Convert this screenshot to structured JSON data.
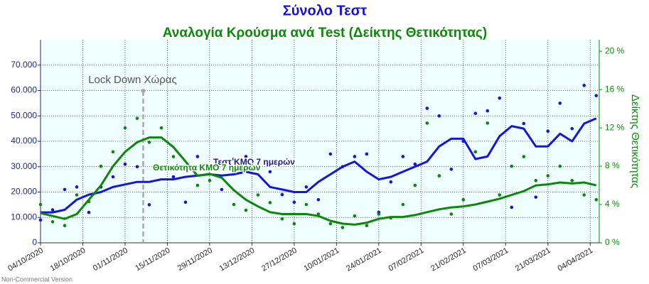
{
  "chart_data": {
    "type": "line",
    "title": "Σύνολο Τεστ",
    "subtitle": "Αναλογία Κρούσμα ανά Test (Δείκτης Θετικότητας)",
    "y2label": "Δείκτης Θετικότητας",
    "watermark": "Non-Commercial Version",
    "xlim": [
      "04/10/2020",
      "07/04/2021"
    ],
    "xticks": [
      "04/10/2020",
      "18/10/2020",
      "01/11/2020",
      "15/11/2020",
      "29/11/2020",
      "13/12/2020",
      "27/12/2020",
      "10/01/2021",
      "24/01/2021",
      "07/02/2021",
      "21/02/2021",
      "07/03/2021",
      "21/03/2021",
      "04/04/2021"
    ],
    "ylim": [
      0,
      80000
    ],
    "yticks": [
      0,
      {
        "value": 10000,
        "label": "10.000"
      },
      {
        "value": 20000,
        "label": "20.000"
      },
      {
        "value": 30000,
        "label": "30.000"
      },
      {
        "value": 40000,
        "label": "40.000"
      },
      {
        "value": 50000,
        "label": "50.000"
      },
      {
        "value": 60000,
        "label": "60.000"
      },
      {
        "value": 70000,
        "label": "70.000"
      }
    ],
    "y2lim": [
      0,
      21.2
    ],
    "y2ticks": [
      {
        "value": 0,
        "label": "0 %"
      },
      {
        "value": 4,
        "label": "4 %"
      },
      {
        "value": 8,
        "label": "8 %"
      },
      {
        "value": 12,
        "label": "12 %"
      },
      {
        "value": 16,
        "label": "16 %"
      },
      {
        "value": 20,
        "label": "20 %"
      }
    ],
    "grid": true,
    "annotations": [
      {
        "text": "Lock Down Χώρας",
        "x": "07/11/2020"
      }
    ],
    "x": [
      "04/10/2020",
      "08/10/2020",
      "12/10/2020",
      "16/10/2020",
      "20/10/2020",
      "24/10/2020",
      "28/10/2020",
      "01/11/2020",
      "05/11/2020",
      "09/11/2020",
      "13/11/2020",
      "17/11/2020",
      "21/11/2020",
      "25/11/2020",
      "29/11/2020",
      "03/12/2020",
      "07/12/2020",
      "11/12/2020",
      "15/12/2020",
      "19/12/2020",
      "23/12/2020",
      "27/12/2020",
      "31/12/2020",
      "04/01/2021",
      "08/01/2021",
      "12/01/2021",
      "16/01/2021",
      "20/01/2021",
      "24/01/2021",
      "28/01/2021",
      "01/02/2021",
      "05/02/2021",
      "09/02/2021",
      "13/02/2021",
      "17/02/2021",
      "21/02/2021",
      "25/02/2021",
      "01/03/2021",
      "05/03/2021",
      "09/03/2021",
      "13/03/2021",
      "17/03/2021",
      "21/03/2021",
      "25/03/2021",
      "29/03/2021",
      "02/04/2021",
      "06/04/2021"
    ],
    "series": [
      {
        "name": "Τεστ ΚΜΟ 7 ημερών",
        "color": "#1515dd",
        "axis": "y",
        "values": [
          12000,
          12000,
          13000,
          17000,
          19000,
          20000,
          22000,
          23000,
          24000,
          24000,
          25000,
          25000,
          26000,
          26500,
          27000,
          26500,
          27000,
          28000,
          27000,
          22000,
          21000,
          20000,
          20000,
          24000,
          27000,
          30000,
          32000,
          28000,
          25000,
          26000,
          28000,
          30000,
          32000,
          38000,
          41000,
          41000,
          33000,
          34000,
          42000,
          46000,
          45000,
          38000,
          38000,
          43000,
          40000,
          47000,
          49000
        ],
        "daily": [
          9000,
          13000,
          21000,
          22000,
          12000,
          22000,
          26000,
          31000,
          30000,
          15000,
          30000,
          26000,
          16000,
          34000,
          30000,
          21000,
          33000,
          34000,
          29000,
          28000,
          19000,
          16000,
          22000,
          17000,
          35000,
          30000,
          34000,
          35000,
          12000,
          24000,
          34000,
          31000,
          53000,
          50000,
          29000,
          40000,
          51000,
          52000,
          57000,
          14000,
          47000,
          18000,
          44000,
          55000,
          45000,
          62000,
          58000
        ]
      },
      {
        "name": "Θετικότητα ΚΜΟ 7 ημερών",
        "color": "#0a880a",
        "axis": "y2",
        "values": [
          3.1,
          2.8,
          2.5,
          3.0,
          4.5,
          6.0,
          8.0,
          9.5,
          10.5,
          11.0,
          11.0,
          10.0,
          8.5,
          7.0,
          7.2,
          6.8,
          5.5,
          4.5,
          3.8,
          3.2,
          3.0,
          3.0,
          3.0,
          2.8,
          2.3,
          2.0,
          1.9,
          2.1,
          2.5,
          2.7,
          2.7,
          2.9,
          3.2,
          3.5,
          3.7,
          3.8,
          4.0,
          4.3,
          4.6,
          5.0,
          5.4,
          6.0,
          6.1,
          6.3,
          6.2,
          6.3,
          6.0
        ],
        "daily": [
          4.0,
          2.2,
          1.8,
          5.0,
          4.3,
          8.0,
          9.5,
          12.0,
          13.0,
          10.5,
          12.0,
          9.0,
          8.0,
          6.0,
          6.5,
          8.5,
          4.0,
          3.4,
          5.0,
          4.2,
          2.5,
          2.0,
          4.0,
          3.0,
          2.0,
          1.6,
          2.8,
          1.8,
          3.0,
          2.6,
          4.0,
          6.0,
          12.5,
          7.0,
          3.0,
          4.5,
          9.5,
          12.5,
          5.0,
          8.0,
          9.0,
          6.5,
          7.0,
          8.0,
          6.5,
          5.0,
          4.5
        ]
      }
    ]
  }
}
